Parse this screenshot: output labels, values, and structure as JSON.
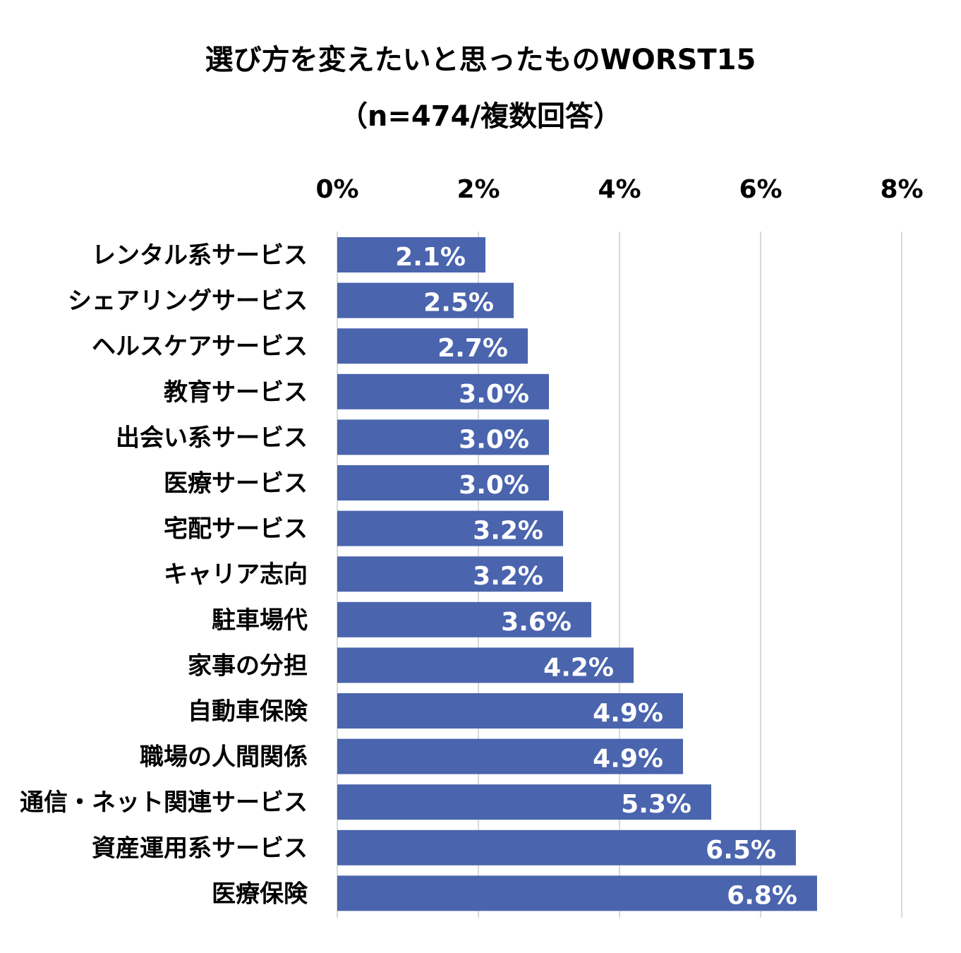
{
  "chart_data": {
    "type": "bar",
    "orientation": "horizontal",
    "title": "選び方を変えたいと思ったものWORST15",
    "subtitle": "（n=474/複数回答）",
    "categories": [
      "レンタル系サービス",
      "シェアリングサービス",
      "ヘルスケアサービス",
      "教育サービス",
      "出会い系サービス",
      "医療サービス",
      "宅配サービス",
      "キャリア志向",
      "駐車場代",
      "家事の分担",
      "自動車保険",
      "職場の人間関係",
      "通信・ネット関連サービス",
      "資産運用系サービス",
      "医療保険"
    ],
    "values": [
      2.1,
      2.5,
      2.7,
      3.0,
      3.0,
      3.0,
      3.2,
      3.2,
      3.6,
      4.2,
      4.9,
      4.9,
      5.3,
      6.5,
      6.8
    ],
    "value_labels": [
      "2.1%",
      "2.5%",
      "2.7%",
      "3.0%",
      "3.0%",
      "3.0%",
      "3.2%",
      "3.2%",
      "3.6%",
      "4.2%",
      "4.9%",
      "4.9%",
      "5.3%",
      "6.5%",
      "6.8%"
    ],
    "xlim": [
      0,
      8
    ],
    "x_ticks": [
      0,
      2,
      4,
      6,
      8
    ],
    "x_tick_labels": [
      "0%",
      "2%",
      "4%",
      "6%",
      "8%"
    ],
    "x_axis_position": "top",
    "grid": true,
    "legend": "none",
    "xlabel": "",
    "ylabel": ""
  },
  "colors": {
    "bar": "#4a64ae",
    "grid": "#d9d9d9",
    "text": "#000000",
    "data_label": "#ffffff"
  }
}
